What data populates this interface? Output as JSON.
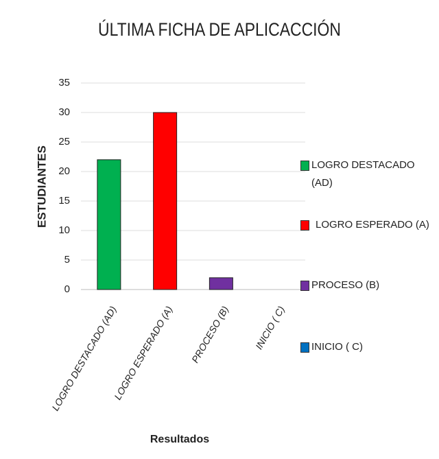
{
  "chart_data": {
    "type": "bar",
    "title": "ÚLTIMA FICHA DE APLICACCIÓN",
    "x_label": "Resultados",
    "y_label": "ESTUDIANTES",
    "categories": [
      "LOGRO DESTACADO (AD)",
      "LOGRO ESPERADO (A)",
      "PROCESO (B)",
      "INICIO ( C)"
    ],
    "values": [
      22,
      30,
      2,
      0
    ],
    "colors": [
      "#00b050",
      "#ff0000",
      "#7030a0",
      "#0070c0"
    ],
    "ylim": [
      0,
      35
    ],
    "yticks": [
      0,
      5,
      10,
      15,
      20,
      25,
      30,
      35
    ],
    "grid": true,
    "legend": "right"
  }
}
